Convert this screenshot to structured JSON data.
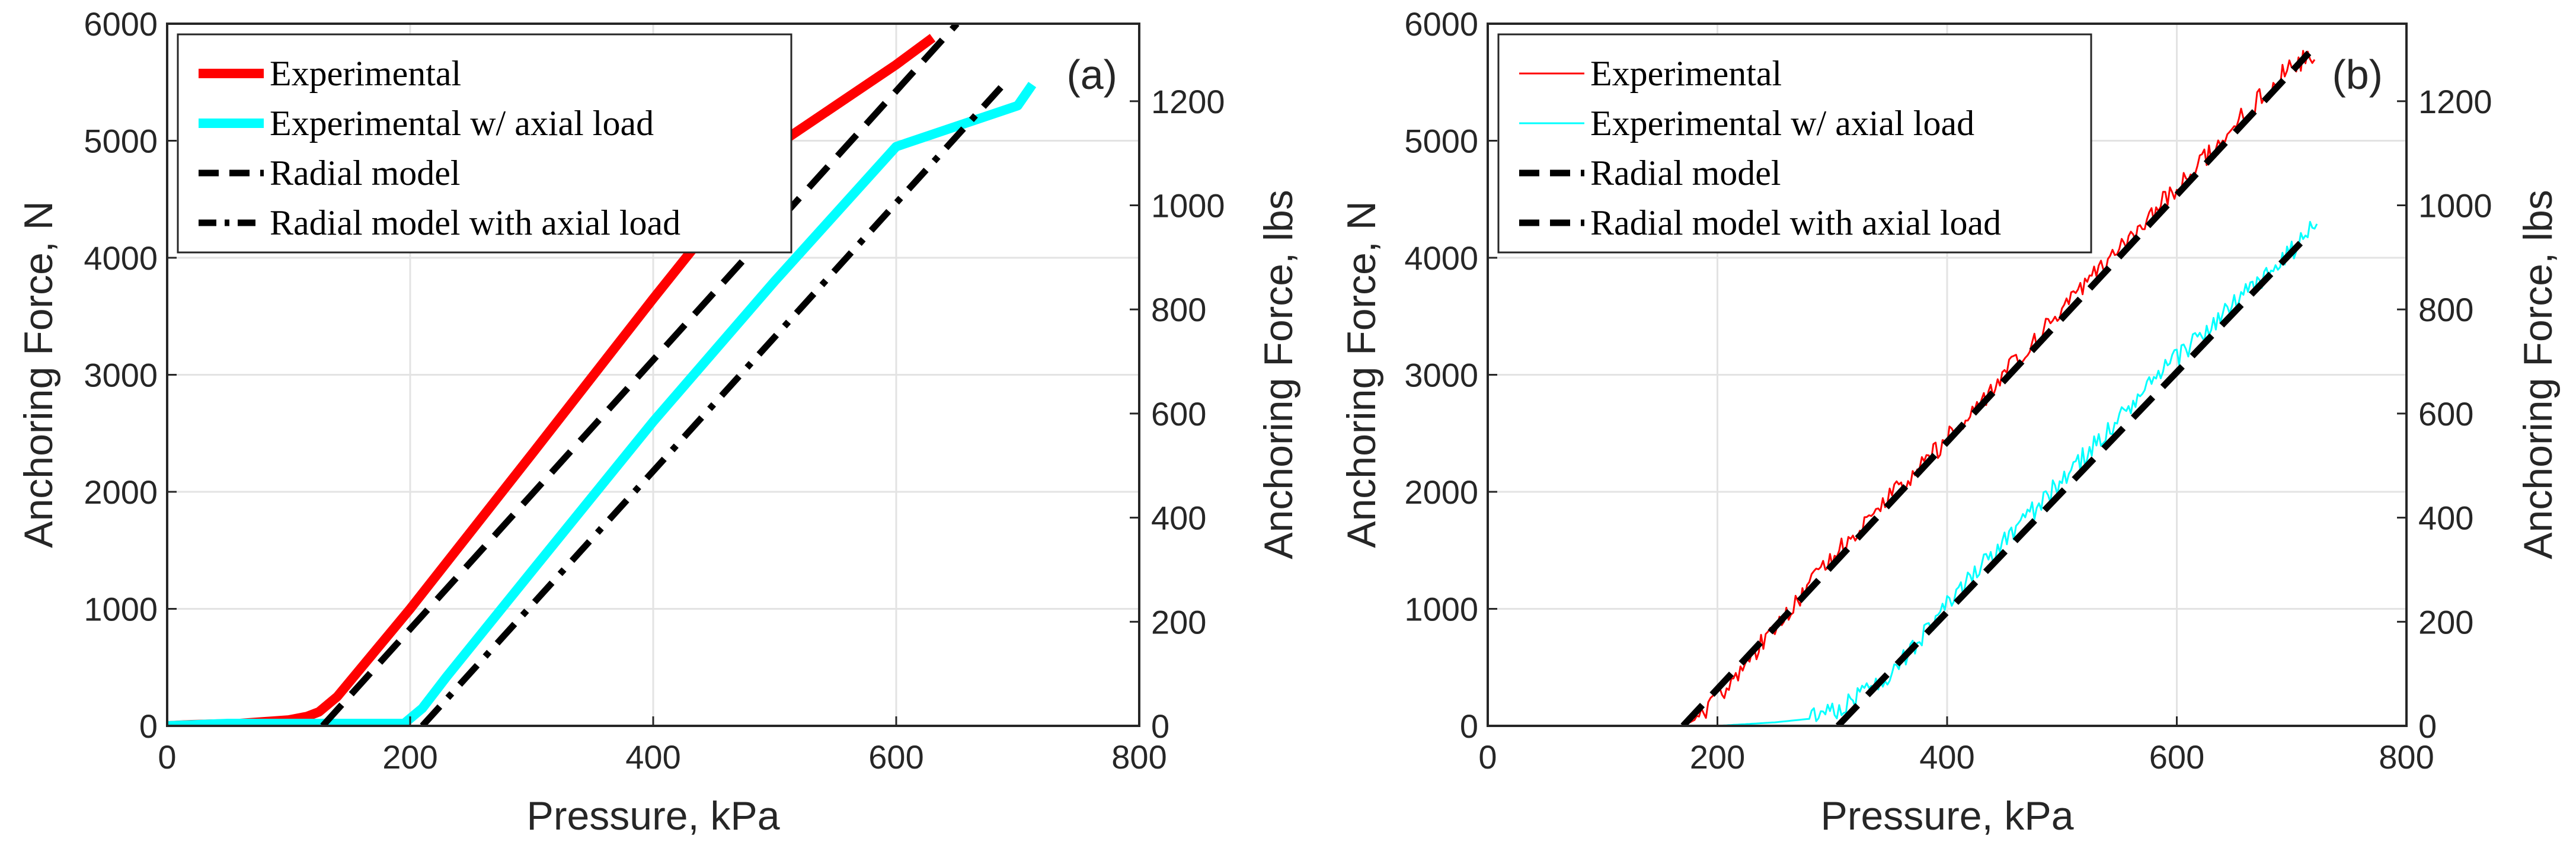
{
  "chart_data": [
    {
      "type": "line",
      "panel_label": "(a)",
      "xlabel": "Pressure, kPa",
      "ylabel": "Anchoring Force, N",
      "ylabel_right": "Anchoring Force, lbs",
      "xlim": [
        0,
        800
      ],
      "ylim": [
        0,
        6000
      ],
      "ylim_right": [
        0,
        1348.9
      ],
      "xticks": [
        "0",
        "200",
        "400",
        "600",
        "800"
      ],
      "yticks": [
        "0",
        "1000",
        "2000",
        "3000",
        "4000",
        "5000",
        "6000"
      ],
      "yticks_right": [
        "0",
        "200",
        "400",
        "600",
        "800",
        "1000",
        "1200"
      ],
      "grid": true,
      "legend_position": "top-left",
      "series": [
        {
          "name": "Experimental",
          "color": "#ff0000",
          "style": "solid-thick",
          "noise": 0,
          "x": [
            0,
            20,
            60,
            100,
            115,
            125,
            140,
            200,
            300,
            400,
            500,
            600,
            630
          ],
          "y": [
            0,
            10,
            20,
            50,
            80,
            120,
            250,
            1000,
            2320,
            3650,
            4950,
            5650,
            5880
          ]
        },
        {
          "name": "Experimental w/ axial load",
          "color": "#00ffff",
          "style": "solid-thick",
          "noise": 0,
          "x": [
            0,
            50,
            100,
            150,
            195,
            210,
            230,
            300,
            400,
            500,
            600,
            700,
            712
          ],
          "y": [
            0,
            20,
            20,
            20,
            20,
            150,
            420,
            1320,
            2600,
            3800,
            4950,
            5300,
            5480
          ]
        },
        {
          "name": "Radial model",
          "color": "#000000",
          "style": "dashed",
          "noise": 0,
          "x": [
            128,
            650
          ],
          "y": [
            0,
            6000
          ]
        },
        {
          "name": "Radial model with axial load",
          "color": "#000000",
          "style": "dashdot",
          "noise": 0,
          "x": [
            210,
            690
          ],
          "y": [
            0,
            5500
          ]
        }
      ]
    },
    {
      "type": "line",
      "panel_label": "(b)",
      "xlabel": "Pressure, kPa",
      "ylabel": "Anchoring Force, N",
      "ylabel_right": "Anchoring Force, lbs",
      "xlim": [
        0,
        800
      ],
      "ylim": [
        0,
        6000
      ],
      "ylim_right": [
        0,
        1348.9
      ],
      "xticks": [
        "0",
        "200",
        "400",
        "600",
        "800"
      ],
      "yticks": [
        "0",
        "1000",
        "2000",
        "3000",
        "4000",
        "5000",
        "6000"
      ],
      "yticks_right": [
        "0",
        "200",
        "400",
        "600",
        "800",
        "1000",
        "1200"
      ],
      "grid": true,
      "legend_position": "top-left",
      "series": [
        {
          "name": "Experimental",
          "color": "#ff0000",
          "style": "solid-thin",
          "noise": 90,
          "x": [
            170,
            180,
            200,
            300,
            400,
            500,
            600,
            700,
            720
          ],
          "y": [
            0,
            50,
            250,
            1450,
            2450,
            3550,
            4600,
            5650,
            5730
          ]
        },
        {
          "name": "Experimental w/ axial load",
          "color": "#00ffff",
          "style": "solid-thin",
          "noise": 90,
          "x": [
            20,
            100,
            200,
            250,
            280,
            300,
            350,
            400,
            500,
            600,
            700,
            722
          ],
          "y": [
            0,
            0,
            0,
            30,
            60,
            120,
            420,
            1050,
            2100,
            3150,
            4050,
            4300
          ]
        },
        {
          "name": "Radial model",
          "color": "#000000",
          "style": "dashed",
          "noise": 0,
          "x": [
            170,
            715
          ],
          "y": [
            0,
            5750
          ]
        },
        {
          "name": "Radial model with axial load",
          "color": "#000000",
          "style": "dashed",
          "noise": 0,
          "x": [
            305,
            715
          ],
          "y": [
            0,
            4200
          ]
        }
      ]
    }
  ]
}
